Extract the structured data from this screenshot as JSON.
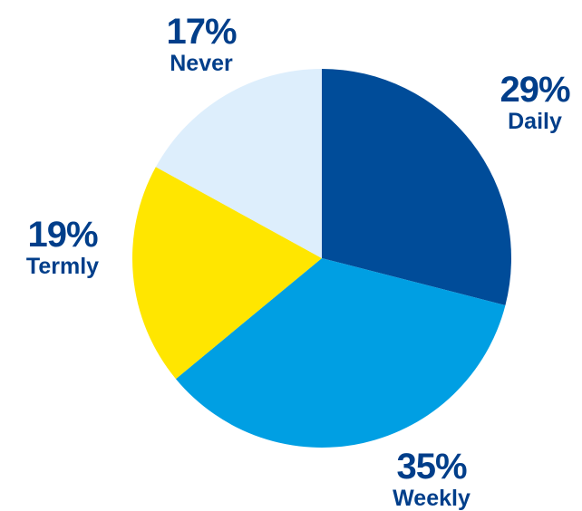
{
  "chart_data": {
    "type": "pie",
    "slices": [
      {
        "label": "Daily",
        "value": 29,
        "display": "29%",
        "color": "#004C99"
      },
      {
        "label": "Weekly",
        "value": 35,
        "display": "35%",
        "color": "#009FE3"
      },
      {
        "label": "Termly",
        "value": 19,
        "display": "19%",
        "color": "#FFE600"
      },
      {
        "label": "Never",
        "value": 17,
        "display": "17%",
        "color": "#DDEEFC"
      }
    ],
    "label_color": "#003E8A",
    "start_angle": "12 o'clock",
    "direction": "clockwise"
  }
}
